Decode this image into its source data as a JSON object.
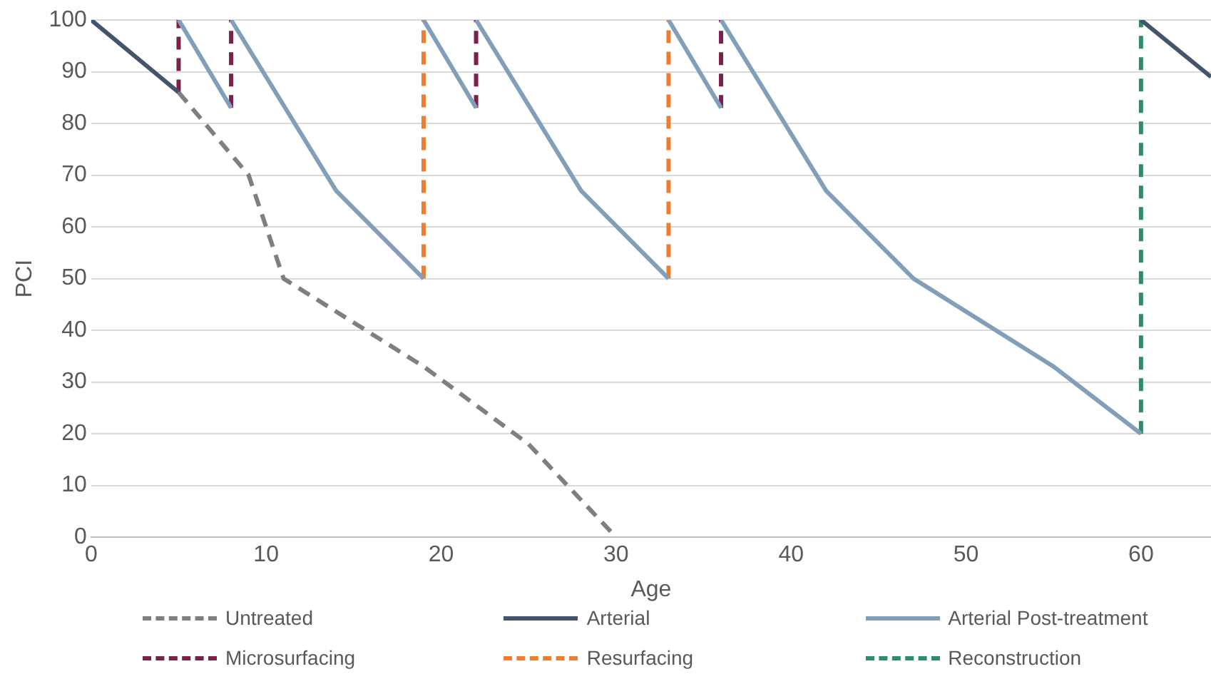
{
  "chart_data": {
    "type": "line",
    "xlabel": "Age",
    "ylabel": "PCI",
    "xlim": [
      0,
      64
    ],
    "xticks": [
      0,
      10,
      20,
      30,
      40,
      50,
      60
    ],
    "ylim": [
      0,
      100
    ],
    "yticks": [
      0,
      10,
      20,
      30,
      40,
      50,
      60,
      70,
      80,
      90,
      100
    ],
    "grid": "y",
    "legend": "bottom",
    "marker": "none",
    "series": [
      {
        "name": "Untreated",
        "color": "#7f7f7f",
        "line_style": "dashed",
        "x": [
          5,
          9,
          11,
          19,
          25,
          30
        ],
        "values": [
          86,
          70,
          50,
          33,
          18,
          0
        ]
      },
      {
        "name": "Arterial",
        "color": "#44546a",
        "line_style": "solid",
        "x": [
          0,
          5,
          null,
          60,
          64
        ],
        "values": [
          100,
          86,
          null,
          100,
          89
        ]
      },
      {
        "name": "Arterial Post-treatment",
        "color": "#829fba",
        "line_style": "solid",
        "x": [
          5,
          8,
          null,
          8,
          14,
          19,
          null,
          19,
          22,
          null,
          22,
          28,
          33,
          null,
          33,
          36,
          null,
          36,
          42,
          47,
          55,
          60
        ],
        "values": [
          100,
          83,
          null,
          100,
          67,
          50,
          null,
          100,
          83,
          null,
          100,
          67,
          50,
          null,
          100,
          83,
          null,
          100,
          67,
          50,
          33,
          20
        ]
      },
      {
        "name": "Microsurfacing",
        "color": "#7b1f4b",
        "line_style": "dashed",
        "x": [
          5,
          5,
          null,
          8,
          8,
          null,
          22,
          22,
          null,
          36,
          36
        ],
        "values": [
          86,
          100,
          null,
          83,
          100,
          null,
          83,
          100,
          null,
          83,
          100
        ]
      },
      {
        "name": "Resurfacing",
        "color": "#ed7d31",
        "line_style": "dashed",
        "x": [
          19,
          19,
          null,
          33,
          33
        ],
        "values": [
          50,
          100,
          null,
          50,
          100
        ]
      },
      {
        "name": "Reconstruction",
        "color": "#2e8b6b",
        "line_style": "dashed",
        "x": [
          60,
          60
        ],
        "values": [
          20,
          100
        ]
      }
    ]
  }
}
